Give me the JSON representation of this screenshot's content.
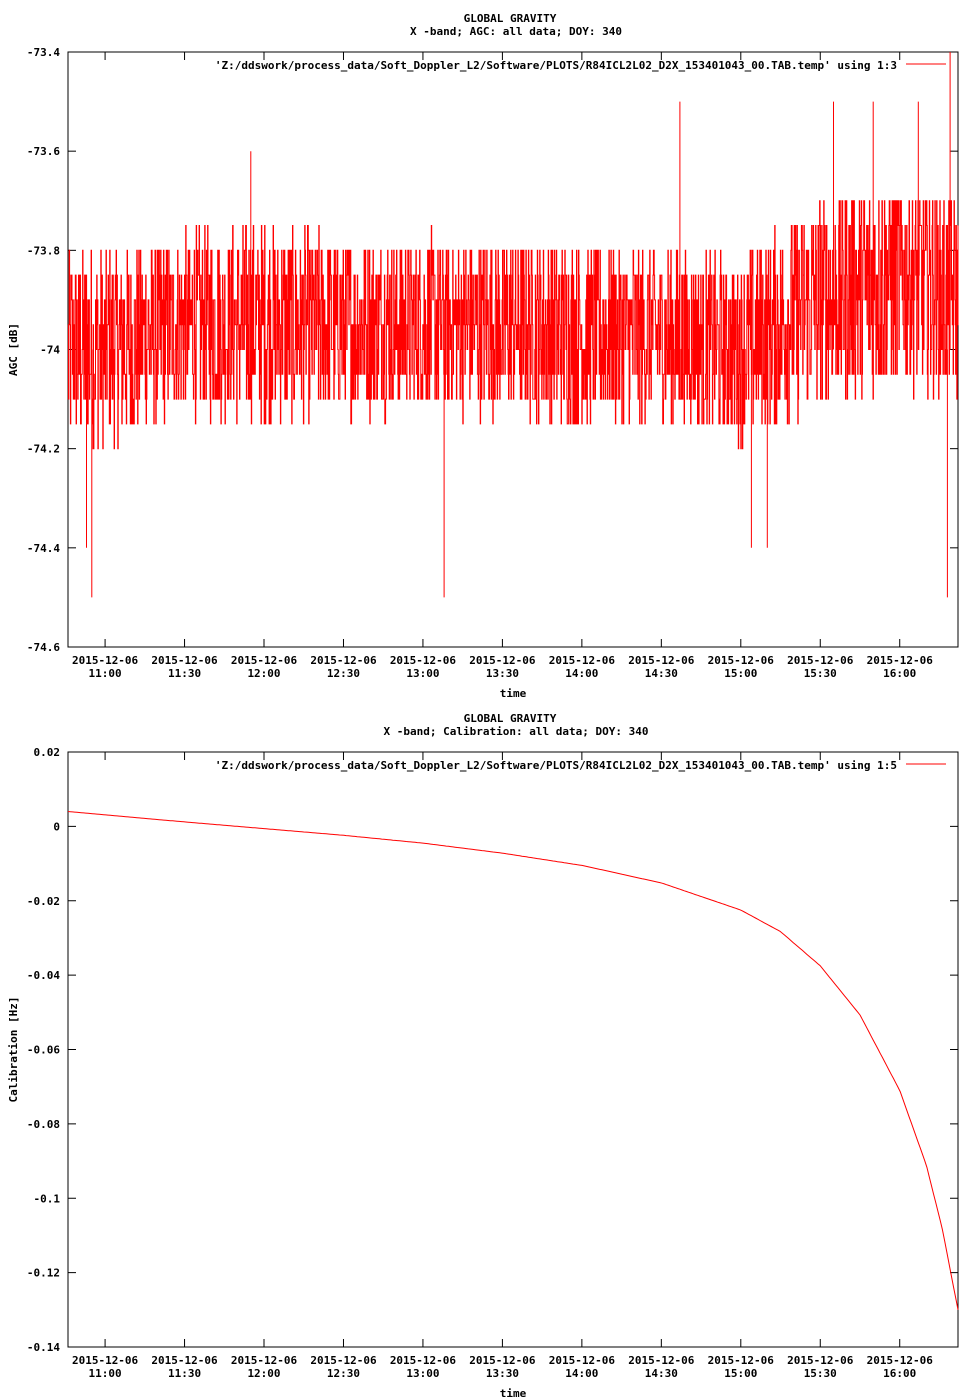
{
  "colors": {
    "series": "#ff0000",
    "axis": "#000000"
  },
  "chart_data": [
    {
      "type": "line",
      "title": "GLOBAL GRAVITY",
      "subtitle": "X -band; AGC: all data; DOY: 340",
      "xlabel": "time",
      "ylabel": "AGC [dB]",
      "ylim": [
        -74.6,
        -73.4
      ],
      "yticks": [
        -73.4,
        -73.6,
        -73.8,
        -74,
        -74.2,
        -74.4,
        -74.6
      ],
      "ytick_labels": [
        "-73.4",
        "-73.6",
        "-73.8",
        "-74",
        "-74.2",
        "-74.4",
        "-74.6"
      ],
      "xlim": [
        "2015-12-06 10:46",
        "2015-12-06 16:22"
      ],
      "xticks": [
        "2015-12-06 11:00",
        "2015-12-06 11:30",
        "2015-12-06 12:00",
        "2015-12-06 12:30",
        "2015-12-06 13:00",
        "2015-12-06 13:30",
        "2015-12-06 14:00",
        "2015-12-06 14:30",
        "2015-12-06 15:00",
        "2015-12-06 15:30",
        "2015-12-06 16:00"
      ],
      "xtick_labels": [
        {
          "date": "2015-12-06",
          "time": "11:00"
        },
        {
          "date": "2015-12-06",
          "time": "11:30"
        },
        {
          "date": "2015-12-06",
          "time": "12:00"
        },
        {
          "date": "2015-12-06",
          "time": "12:30"
        },
        {
          "date": "2015-12-06",
          "time": "13:00"
        },
        {
          "date": "2015-12-06",
          "time": "13:30"
        },
        {
          "date": "2015-12-06",
          "time": "14:00"
        },
        {
          "date": "2015-12-06",
          "time": "14:30"
        },
        {
          "date": "2015-12-06",
          "time": "15:00"
        },
        {
          "date": "2015-12-06",
          "time": "15:30"
        },
        {
          "date": "2015-12-06",
          "time": "16:00"
        }
      ],
      "legend": "'Z:/ddswork/process_data/Soft_Doppler_L2/Software/PLOTS/R84ICL2L02_D2X_153401043_00.TAB.temp' using 1:3",
      "legend_position": "top-right",
      "series_style": "noisy",
      "x": [
        "2015-12-06 10:46",
        "2015-12-06 11:00",
        "2015-12-06 11:30",
        "2015-12-06 12:00",
        "2015-12-06 12:30",
        "2015-12-06 13:00",
        "2015-12-06 13:30",
        "2015-12-06 14:00",
        "2015-12-06 14:30",
        "2015-12-06 15:00",
        "2015-12-06 15:30",
        "2015-12-06 16:00",
        "2015-12-06 16:22"
      ],
      "y": [
        -74.0,
        -74.0,
        -73.95,
        -73.95,
        -73.95,
        -73.95,
        -73.95,
        -73.97,
        -73.97,
        -74.0,
        -73.9,
        -73.85,
        -73.9
      ],
      "noise": [
        0.2,
        0.2,
        0.18,
        0.2,
        0.18,
        0.18,
        0.18,
        0.18,
        0.18,
        0.18,
        0.22,
        0.22,
        0.2
      ],
      "spikes": [
        {
          "x": "2015-12-06 10:55",
          "y": -74.5
        },
        {
          "x": "2015-12-06 10:53",
          "y": -74.4
        },
        {
          "x": "2015-12-06 11:55",
          "y": -73.6
        },
        {
          "x": "2015-12-06 13:08",
          "y": -74.5
        },
        {
          "x": "2015-12-06 13:08",
          "y": -74.4
        },
        {
          "x": "2015-12-06 14:37",
          "y": -73.5
        },
        {
          "x": "2015-12-06 15:04",
          "y": -74.4
        },
        {
          "x": "2015-12-06 15:10",
          "y": -74.4
        },
        {
          "x": "2015-12-06 15:35",
          "y": -73.5
        },
        {
          "x": "2015-12-06 15:50",
          "y": -73.5
        },
        {
          "x": "2015-12-06 16:07",
          "y": -73.5
        },
        {
          "x": "2015-12-06 16:18",
          "y": -74.5
        },
        {
          "x": "2015-12-06 16:19",
          "y": -73.4
        }
      ]
    },
    {
      "type": "line",
      "title": "GLOBAL GRAVITY",
      "subtitle": "X -band; Calibration: all data; DOY: 340",
      "xlabel": "time",
      "ylabel": "Calibration [Hz]",
      "ylim": [
        -0.14,
        0.02
      ],
      "yticks": [
        0.02,
        0,
        -0.02,
        -0.04,
        -0.06,
        -0.08,
        -0.1,
        -0.12,
        -0.14
      ],
      "ytick_labels": [
        "0.02",
        "0",
        "-0.02",
        "-0.04",
        "-0.06",
        "-0.08",
        "-0.1",
        "-0.12",
        "-0.14"
      ],
      "xlim": [
        "2015-12-06 10:46",
        "2015-12-06 16:22"
      ],
      "xticks": [
        "2015-12-06 11:00",
        "2015-12-06 11:30",
        "2015-12-06 12:00",
        "2015-12-06 12:30",
        "2015-12-06 13:00",
        "2015-12-06 13:30",
        "2015-12-06 14:00",
        "2015-12-06 14:30",
        "2015-12-06 15:00",
        "2015-12-06 15:30",
        "2015-12-06 16:00"
      ],
      "xtick_labels": [
        {
          "date": "2015-12-06",
          "time": "11:00"
        },
        {
          "date": "2015-12-06",
          "time": "11:30"
        },
        {
          "date": "2015-12-06",
          "time": "12:00"
        },
        {
          "date": "2015-12-06",
          "time": "12:30"
        },
        {
          "date": "2015-12-06",
          "time": "13:00"
        },
        {
          "date": "2015-12-06",
          "time": "13:30"
        },
        {
          "date": "2015-12-06",
          "time": "14:00"
        },
        {
          "date": "2015-12-06",
          "time": "14:30"
        },
        {
          "date": "2015-12-06",
          "time": "15:00"
        },
        {
          "date": "2015-12-06",
          "time": "15:30"
        },
        {
          "date": "2015-12-06",
          "time": "16:00"
        }
      ],
      "legend": "'Z:/ddswork/process_data/Soft_Doppler_L2/Software/PLOTS/R84ICL2L02_D2X_153401043_00.TAB.temp' using 1:5",
      "legend_position": "top-right",
      "series_style": "smooth",
      "x": [
        "2015-12-06 10:46",
        "2015-12-06 11:00",
        "2015-12-06 11:30",
        "2015-12-06 12:00",
        "2015-12-06 12:30",
        "2015-12-06 13:00",
        "2015-12-06 13:30",
        "2015-12-06 14:00",
        "2015-12-06 14:30",
        "2015-12-06 15:00",
        "2015-12-06 15:15",
        "2015-12-06 15:30",
        "2015-12-06 15:45",
        "2015-12-06 16:00",
        "2015-12-06 16:10",
        "2015-12-06 16:16",
        "2015-12-06 16:22"
      ],
      "y": [
        0.004,
        0.0031,
        0.0012,
        -0.0006,
        -0.0024,
        -0.0045,
        -0.0072,
        -0.0105,
        -0.0152,
        -0.0225,
        -0.0283,
        -0.0375,
        -0.0507,
        -0.071,
        -0.091,
        -0.108,
        -0.13
      ]
    }
  ]
}
